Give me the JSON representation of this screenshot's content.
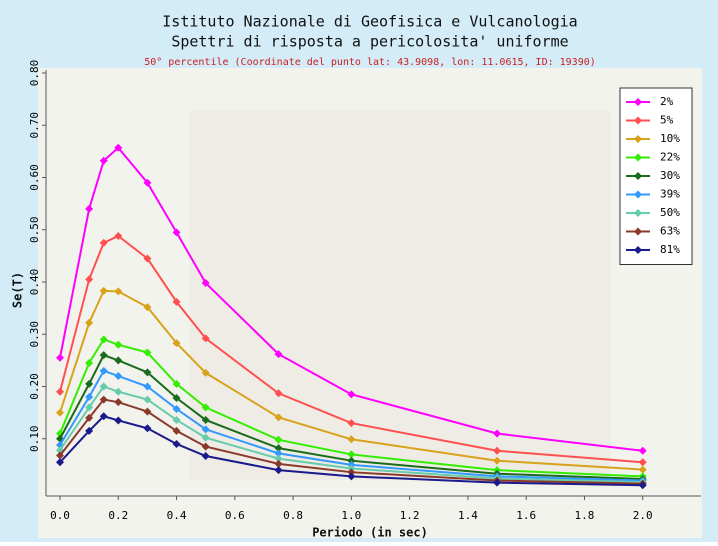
{
  "chart_data": {
    "type": "line",
    "title": "Istituto Nazionale di Geofisica e Vulcanologia",
    "subtitle": "Spettri di risposta a pericolosita' uniforme",
    "annotation": "50° percentile (Coordinate del punto lat: 43.9098, lon: 11.0615, ID: 19390)",
    "x_label": "Periodo (in sec)",
    "y_label": "Se(T)",
    "x": [
      0,
      0.1,
      0.15,
      0.2,
      0.3,
      0.4,
      0.5,
      0.75,
      1.0,
      1.5,
      2.0
    ],
    "series": [
      {
        "name": "2%",
        "color": "#ff00ff",
        "values": [
          0.255,
          0.54,
          0.632,
          0.657,
          0.59,
          0.495,
          0.398,
          0.262,
          0.185,
          0.11,
          0.077
        ]
      },
      {
        "name": "5%",
        "color": "#ff5050",
        "values": [
          0.19,
          0.405,
          0.475,
          0.488,
          0.445,
          0.362,
          0.292,
          0.187,
          0.13,
          0.077,
          0.055
        ]
      },
      {
        "name": "10%",
        "color": "#d9a21b",
        "values": [
          0.15,
          0.322,
          0.383,
          0.382,
          0.352,
          0.283,
          0.226,
          0.141,
          0.099,
          0.058,
          0.041
        ]
      },
      {
        "name": "22%",
        "color": "#33ee00",
        "values": [
          0.11,
          0.245,
          0.29,
          0.28,
          0.265,
          0.205,
          0.16,
          0.098,
          0.07,
          0.04,
          0.028
        ]
      },
      {
        "name": "30%",
        "color": "#1a6b1a",
        "values": [
          0.1,
          0.205,
          0.26,
          0.25,
          0.227,
          0.178,
          0.136,
          0.082,
          0.058,
          0.033,
          0.023
        ]
      },
      {
        "name": "39%",
        "color": "#3399ff",
        "values": [
          0.088,
          0.18,
          0.23,
          0.22,
          0.2,
          0.157,
          0.118,
          0.072,
          0.05,
          0.028,
          0.02
        ]
      },
      {
        "name": "50%",
        "color": "#66ccaa",
        "values": [
          0.078,
          0.16,
          0.2,
          0.19,
          0.175,
          0.136,
          0.102,
          0.062,
          0.043,
          0.024,
          0.017
        ]
      },
      {
        "name": "63%",
        "color": "#8b3a2a",
        "values": [
          0.068,
          0.14,
          0.175,
          0.17,
          0.152,
          0.115,
          0.085,
          0.052,
          0.036,
          0.02,
          0.014
        ]
      },
      {
        "name": "81%",
        "color": "#1a1a8c",
        "values": [
          0.055,
          0.115,
          0.143,
          0.135,
          0.12,
          0.09,
          0.067,
          0.04,
          0.028,
          0.016,
          0.011
        ]
      }
    ],
    "xlim": [
      0,
      2.2
    ],
    "xticks": [
      {
        "value": 0,
        "label": "0.0"
      },
      {
        "value": 0.2,
        "label": "0.2"
      },
      {
        "value": 0.4,
        "label": "0.4"
      },
      {
        "value": 0.6,
        "label": "0.6"
      },
      {
        "value": 0.8,
        "label": "0.8"
      },
      {
        "value": 1.0,
        "label": "1.0"
      },
      {
        "value": 1.2,
        "label": "1.2"
      },
      {
        "value": 1.4,
        "label": "1.4"
      },
      {
        "value": 1.6,
        "label": "1.6"
      },
      {
        "value": 1.8,
        "label": "1.8"
      },
      {
        "value": 2.0,
        "label": "2.0"
      }
    ],
    "ylim": [
      0,
      0.8
    ],
    "yticks": [
      {
        "value": 0.1,
        "label": "0.10"
      },
      {
        "value": 0.2,
        "label": "0.20"
      },
      {
        "value": 0.3,
        "label": "0.30"
      },
      {
        "value": 0.4,
        "label": "0.40"
      },
      {
        "value": 0.5,
        "label": "0.50"
      },
      {
        "value": 0.6,
        "label": "0.60"
      },
      {
        "value": 0.7,
        "label": "0.70"
      },
      {
        "value": 0.8,
        "label": "0.80"
      }
    ],
    "legend": "top-right"
  }
}
